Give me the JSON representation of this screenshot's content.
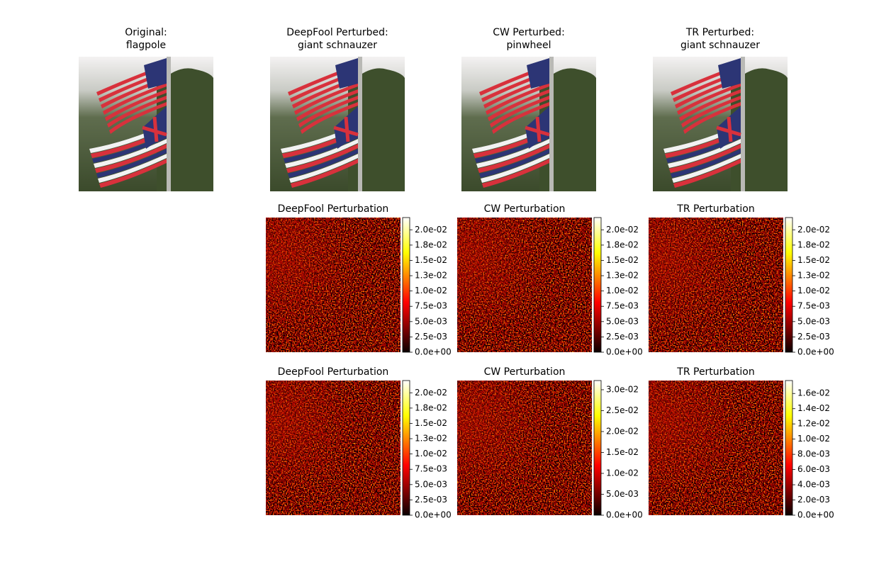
{
  "images": [
    {
      "title": [
        "Original:",
        "flagpole"
      ]
    },
    {
      "title": [
        "DeepFool Perturbed:",
        "giant schnauzer"
      ]
    },
    {
      "title": [
        "CW Perturbed:",
        "pinwheel"
      ]
    },
    {
      "title": [
        "TR Perturbed:",
        "giant schnauzer"
      ]
    }
  ],
  "perturbations": [
    [
      {
        "title": "DeepFool Perturbation",
        "clim": [
          0,
          0.022
        ],
        "ticks": [
          {
            "value": 0,
            "label": "0.0e+00"
          },
          {
            "value": 0.0025,
            "label": "2.5e-03"
          },
          {
            "value": 0.005,
            "label": "5.0e-03"
          },
          {
            "value": 0.0075,
            "label": "7.5e-03"
          },
          {
            "value": 0.01,
            "label": "1.0e-02"
          },
          {
            "value": 0.0125,
            "label": "1.3e-02"
          },
          {
            "value": 0.015,
            "label": "1.5e-02"
          },
          {
            "value": 0.0175,
            "label": "1.8e-02"
          },
          {
            "value": 0.02,
            "label": "2.0e-02"
          }
        ]
      },
      {
        "title": "CW Perturbation",
        "clim": [
          0,
          0.022
        ],
        "ticks": [
          {
            "value": 0,
            "label": "0.0e+00"
          },
          {
            "value": 0.0025,
            "label": "2.5e-03"
          },
          {
            "value": 0.005,
            "label": "5.0e-03"
          },
          {
            "value": 0.0075,
            "label": "7.5e-03"
          },
          {
            "value": 0.01,
            "label": "1.0e-02"
          },
          {
            "value": 0.0125,
            "label": "1.3e-02"
          },
          {
            "value": 0.015,
            "label": "1.5e-02"
          },
          {
            "value": 0.0175,
            "label": "1.8e-02"
          },
          {
            "value": 0.02,
            "label": "2.0e-02"
          }
        ]
      },
      {
        "title": "TR Perturbation",
        "clim": [
          0,
          0.022
        ],
        "ticks": [
          {
            "value": 0,
            "label": "0.0e+00"
          },
          {
            "value": 0.0025,
            "label": "2.5e-03"
          },
          {
            "value": 0.005,
            "label": "5.0e-03"
          },
          {
            "value": 0.0075,
            "label": "7.5e-03"
          },
          {
            "value": 0.01,
            "label": "1.0e-02"
          },
          {
            "value": 0.0125,
            "label": "1.3e-02"
          },
          {
            "value": 0.015,
            "label": "1.5e-02"
          },
          {
            "value": 0.0175,
            "label": "1.8e-02"
          },
          {
            "value": 0.02,
            "label": "2.0e-02"
          }
        ]
      }
    ],
    [
      {
        "title": "DeepFool Perturbation",
        "clim": [
          0,
          0.022
        ],
        "ticks": [
          {
            "value": 0,
            "label": "0.0e+00"
          },
          {
            "value": 0.0025,
            "label": "2.5e-03"
          },
          {
            "value": 0.005,
            "label": "5.0e-03"
          },
          {
            "value": 0.0075,
            "label": "7.5e-03"
          },
          {
            "value": 0.01,
            "label": "1.0e-02"
          },
          {
            "value": 0.0125,
            "label": "1.3e-02"
          },
          {
            "value": 0.015,
            "label": "1.5e-02"
          },
          {
            "value": 0.0175,
            "label": "1.8e-02"
          },
          {
            "value": 0.02,
            "label": "2.0e-02"
          }
        ]
      },
      {
        "title": "CW Perturbation",
        "clim": [
          0,
          0.0322
        ],
        "ticks": [
          {
            "value": 0,
            "label": "0.0e+00"
          },
          {
            "value": 0.005,
            "label": "5.0e-03"
          },
          {
            "value": 0.01,
            "label": "1.0e-02"
          },
          {
            "value": 0.015,
            "label": "1.5e-02"
          },
          {
            "value": 0.02,
            "label": "2.0e-02"
          },
          {
            "value": 0.025,
            "label": "2.5e-02"
          },
          {
            "value": 0.03,
            "label": "3.0e-02"
          }
        ]
      },
      {
        "title": "TR Perturbation",
        "clim": [
          0,
          0.0177
        ],
        "ticks": [
          {
            "value": 0,
            "label": "0.0e+00"
          },
          {
            "value": 0.002,
            "label": "2.0e-03"
          },
          {
            "value": 0.004,
            "label": "4.0e-03"
          },
          {
            "value": 0.006,
            "label": "6.0e-03"
          },
          {
            "value": 0.008,
            "label": "8.0e-03"
          },
          {
            "value": 0.01,
            "label": "1.0e-02"
          },
          {
            "value": 0.012,
            "label": "1.2e-02"
          },
          {
            "value": 0.014,
            "label": "1.4e-02"
          },
          {
            "value": 0.016,
            "label": "1.6e-02"
          }
        ]
      }
    ]
  ]
}
